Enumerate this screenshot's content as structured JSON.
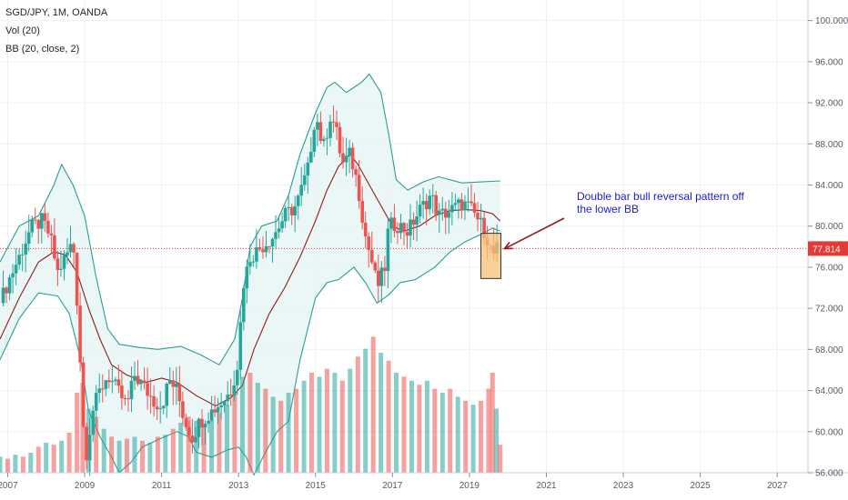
{
  "header": {
    "symbol": "SGD/JPY, 1M, OANDA",
    "volume_indicator": "Vol (20)",
    "bb_indicator": "BB (20, close, 2)"
  },
  "colors": {
    "up_candle": "#26a69a",
    "down_candle": "#ef5350",
    "bb_band": "#2a9d8f",
    "bb_basis": "#8e1c1c",
    "bb_fill": "#e3f4f3",
    "last_price": "#e53935",
    "highlight_fill": "#f6c177",
    "highlight_border": "#333333",
    "annotation_text": "#1d1dcc",
    "arrow": "#8e1c1c"
  },
  "chart_data": {
    "type": "candlestick",
    "title": "SGD/JPY, 1M, OANDA",
    "xlabel": "",
    "ylabel": "",
    "x_range": [
      2006.8,
      2027.8
    ],
    "ylim": [
      56.0,
      102.0
    ],
    "y_ticks": [
      "100.000",
      "96.000",
      "92.000",
      "88.000",
      "84.000",
      "80.000",
      "76.000",
      "72.000",
      "68.000",
      "64.000",
      "60.000",
      "56.000"
    ],
    "y_tick_values": [
      100,
      96,
      92,
      88,
      84,
      80,
      76,
      72,
      68,
      64,
      60,
      56
    ],
    "x_ticks": [
      "2007",
      "2009",
      "2011",
      "2013",
      "2015",
      "2017",
      "2019",
      "2021",
      "2023",
      "2025",
      "2027"
    ],
    "x_tick_values": [
      2007,
      2009,
      2011,
      2013,
      2015,
      2017,
      2019,
      2021,
      2023,
      2025,
      2027
    ],
    "last_price": "77.814",
    "last_price_value": 77.814,
    "grid": true,
    "volume_series": "Vol (20)",
    "bollinger_bands": "BB (20, close, 2)",
    "price_path": [
      [
        2006.8,
        72.5
      ],
      [
        2007.0,
        74.5
      ],
      [
        2007.3,
        77
      ],
      [
        2007.6,
        79.8
      ],
      [
        2007.9,
        80.5
      ],
      [
        2008.1,
        79
      ],
      [
        2008.3,
        75.5
      ],
      [
        2008.5,
        77
      ],
      [
        2008.7,
        78.5
      ],
      [
        2008.85,
        70
      ],
      [
        2008.95,
        61
      ],
      [
        2009.05,
        58
      ],
      [
        2009.2,
        62
      ],
      [
        2009.4,
        64
      ],
      [
        2009.6,
        65.5
      ],
      [
        2009.85,
        64
      ],
      [
        2010.1,
        62.5
      ],
      [
        2010.3,
        65.5
      ],
      [
        2010.6,
        64
      ],
      [
        2010.8,
        63
      ],
      [
        2011.0,
        62.5
      ],
      [
        2011.2,
        65
      ],
      [
        2011.4,
        64
      ],
      [
        2011.6,
        61
      ],
      [
        2011.8,
        59.5
      ],
      [
        2012.0,
        61
      ],
      [
        2012.3,
        62
      ],
      [
        2012.6,
        63
      ],
      [
        2012.8,
        64
      ],
      [
        2013.0,
        67
      ],
      [
        2013.1,
        74
      ],
      [
        2013.3,
        77
      ],
      [
        2013.6,
        78
      ],
      [
        2013.9,
        79
      ],
      [
        2014.2,
        81
      ],
      [
        2014.5,
        82
      ],
      [
        2014.8,
        85.5
      ],
      [
        2015.0,
        91
      ],
      [
        2015.2,
        87.5
      ],
      [
        2015.4,
        91
      ],
      [
        2015.55,
        89
      ],
      [
        2015.7,
        86
      ],
      [
        2015.9,
        87
      ],
      [
        2016.1,
        84
      ],
      [
        2016.3,
        79
      ],
      [
        2016.5,
        76
      ],
      [
        2016.6,
        74
      ],
      [
        2016.8,
        76
      ],
      [
        2016.9,
        80
      ],
      [
        2017.1,
        80.2
      ],
      [
        2017.4,
        79.5
      ],
      [
        2017.7,
        81.5
      ],
      [
        2018.0,
        83
      ],
      [
        2018.2,
        81
      ],
      [
        2018.5,
        81.5
      ],
      [
        2018.8,
        82.2
      ],
      [
        2019.0,
        81.8
      ],
      [
        2019.2,
        80.8
      ],
      [
        2019.4,
        79.5
      ],
      [
        2019.5,
        78.5
      ],
      [
        2019.6,
        77
      ],
      [
        2019.7,
        77.8
      ],
      [
        2019.75,
        77.81
      ]
    ],
    "bb_upper": [
      [
        2006.8,
        76.5
      ],
      [
        2007.3,
        80
      ],
      [
        2007.8,
        81
      ],
      [
        2008.2,
        84
      ],
      [
        2008.4,
        86
      ],
      [
        2008.7,
        84
      ],
      [
        2009.0,
        81
      ],
      [
        2009.3,
        75
      ],
      [
        2009.6,
        70
      ],
      [
        2009.9,
        68.5
      ],
      [
        2010.4,
        68.2
      ],
      [
        2010.9,
        68
      ],
      [
        2011.5,
        68.3
      ],
      [
        2012.0,
        67.5
      ],
      [
        2012.5,
        66.5
      ],
      [
        2012.9,
        69
      ],
      [
        2013.1,
        73
      ],
      [
        2013.3,
        78
      ],
      [
        2013.6,
        80
      ],
      [
        2014.0,
        80.5
      ],
      [
        2014.3,
        83
      ],
      [
        2014.6,
        87
      ],
      [
        2015.0,
        91
      ],
      [
        2015.3,
        93.5
      ],
      [
        2015.5,
        94
      ],
      [
        2015.8,
        93
      ],
      [
        2016.2,
        94
      ],
      [
        2016.4,
        94.8
      ],
      [
        2016.7,
        93
      ],
      [
        2016.9,
        89
      ],
      [
        2017.1,
        84.5
      ],
      [
        2017.4,
        83.5
      ],
      [
        2017.8,
        84.3
      ],
      [
        2018.2,
        84.8
      ],
      [
        2018.8,
        84.2
      ],
      [
        2019.3,
        84.3
      ],
      [
        2019.8,
        84.4
      ]
    ],
    "bb_lower": [
      [
        2006.8,
        67
      ],
      [
        2007.3,
        71
      ],
      [
        2007.8,
        73.5
      ],
      [
        2008.3,
        73.2
      ],
      [
        2008.6,
        71.5
      ],
      [
        2008.9,
        67
      ],
      [
        2009.1,
        62
      ],
      [
        2009.4,
        59.5
      ],
      [
        2009.7,
        57.5
      ],
      [
        2009.9,
        56
      ],
      [
        2010.2,
        57
      ],
      [
        2010.5,
        58.5
      ],
      [
        2010.9,
        59.2
      ],
      [
        2011.4,
        60
      ],
      [
        2011.7,
        59.5
      ],
      [
        2011.9,
        58
      ],
      [
        2012.3,
        57.5
      ],
      [
        2012.7,
        58.2
      ],
      [
        2013.0,
        58.5
      ],
      [
        2013.2,
        57.5
      ],
      [
        2013.4,
        55.8
      ],
      [
        2013.7,
        58
      ],
      [
        2014.0,
        60
      ],
      [
        2014.3,
        61
      ],
      [
        2014.6,
        67
      ],
      [
        2015.0,
        73
      ],
      [
        2015.3,
        74.5
      ],
      [
        2015.6,
        74.8
      ],
      [
        2016.0,
        76
      ],
      [
        2016.3,
        74.5
      ],
      [
        2016.6,
        72.5
      ],
      [
        2016.9,
        73.3
      ],
      [
        2017.2,
        74.5
      ],
      [
        2017.6,
        74.8
      ],
      [
        2018.1,
        76
      ],
      [
        2018.5,
        77.5
      ],
      [
        2018.9,
        78.5
      ],
      [
        2019.3,
        79.2
      ],
      [
        2019.6,
        79.8
      ],
      [
        2019.8,
        79.5
      ]
    ],
    "bb_basis": [
      [
        2006.8,
        69
      ],
      [
        2007.3,
        73
      ],
      [
        2007.8,
        76.5
      ],
      [
        2008.2,
        77.5
      ],
      [
        2008.5,
        77.2
      ],
      [
        2008.8,
        75.5
      ],
      [
        2009.1,
        72
      ],
      [
        2009.4,
        69
      ],
      [
        2009.7,
        66.5
      ],
      [
        2010.1,
        65.5
      ],
      [
        2010.6,
        64.8
      ],
      [
        2011.0,
        65.2
      ],
      [
        2011.4,
        64.8
      ],
      [
        2011.9,
        63.5
      ],
      [
        2012.4,
        62.5
      ],
      [
        2012.8,
        63.3
      ],
      [
        2013.1,
        64.5
      ],
      [
        2013.4,
        68
      ],
      [
        2013.8,
        71.5
      ],
      [
        2014.2,
        74
      ],
      [
        2014.6,
        77
      ],
      [
        2015.0,
        80.5
      ],
      [
        2015.3,
        83.5
      ],
      [
        2015.6,
        85.8
      ],
      [
        2015.9,
        87
      ],
      [
        2016.1,
        86
      ],
      [
        2016.4,
        84
      ],
      [
        2016.7,
        82
      ],
      [
        2017.0,
        80
      ],
      [
        2017.3,
        79.5
      ],
      [
        2017.7,
        80
      ],
      [
        2018.1,
        81
      ],
      [
        2018.5,
        81.5
      ],
      [
        2018.9,
        81.6
      ],
      [
        2019.3,
        81.5
      ],
      [
        2019.6,
        81.2
      ],
      [
        2019.8,
        80.5
      ]
    ],
    "volume_bars": [
      [
        2006.8,
        0.8,
        "u"
      ],
      [
        2007.0,
        0.7,
        "d"
      ],
      [
        2007.2,
        0.9,
        "u"
      ],
      [
        2007.4,
        0.8,
        "d"
      ],
      [
        2007.6,
        1.0,
        "u"
      ],
      [
        2007.8,
        1.3,
        "d"
      ],
      [
        2008.0,
        1.5,
        "u"
      ],
      [
        2008.2,
        1.4,
        "d"
      ],
      [
        2008.4,
        1.6,
        "u"
      ],
      [
        2008.6,
        2.0,
        "d"
      ],
      [
        2008.8,
        4.0,
        "d"
      ],
      [
        2008.95,
        4.5,
        "d"
      ],
      [
        2009.1,
        3.2,
        "u"
      ],
      [
        2009.3,
        2.8,
        "d"
      ],
      [
        2009.5,
        2.2,
        "u"
      ],
      [
        2009.7,
        1.8,
        "d"
      ],
      [
        2009.9,
        1.6,
        "u"
      ],
      [
        2010.1,
        1.7,
        "d"
      ],
      [
        2010.3,
        1.8,
        "u"
      ],
      [
        2010.5,
        1.6,
        "d"
      ],
      [
        2010.7,
        1.5,
        "u"
      ],
      [
        2010.9,
        1.8,
        "d"
      ],
      [
        2011.1,
        1.9,
        "u"
      ],
      [
        2011.3,
        2.2,
        "d"
      ],
      [
        2011.5,
        2.5,
        "u"
      ],
      [
        2011.7,
        2.8,
        "d"
      ],
      [
        2011.9,
        2.6,
        "u"
      ],
      [
        2012.1,
        2.4,
        "d"
      ],
      [
        2012.3,
        2.6,
        "u"
      ],
      [
        2012.5,
        3.0,
        "d"
      ],
      [
        2012.7,
        3.4,
        "u"
      ],
      [
        2012.9,
        4.0,
        "d"
      ],
      [
        2013.1,
        4.8,
        "u"
      ],
      [
        2013.3,
        5.0,
        "d"
      ],
      [
        2013.5,
        4.5,
        "u"
      ],
      [
        2013.7,
        4.2,
        "d"
      ],
      [
        2013.9,
        3.8,
        "u"
      ],
      [
        2014.1,
        3.6,
        "d"
      ],
      [
        2014.3,
        4.0,
        "u"
      ],
      [
        2014.5,
        4.2,
        "d"
      ],
      [
        2014.7,
        4.6,
        "u"
      ],
      [
        2014.9,
        5.0,
        "d"
      ],
      [
        2015.1,
        4.8,
        "u"
      ],
      [
        2015.3,
        5.2,
        "d"
      ],
      [
        2015.5,
        5.0,
        "u"
      ],
      [
        2015.7,
        4.6,
        "d"
      ],
      [
        2015.9,
        5.2,
        "u"
      ],
      [
        2016.1,
        5.8,
        "d"
      ],
      [
        2016.3,
        6.2,
        "u"
      ],
      [
        2016.5,
        6.8,
        "d"
      ],
      [
        2016.7,
        6.0,
        "u"
      ],
      [
        2016.9,
        5.6,
        "d"
      ],
      [
        2017.1,
        5.0,
        "u"
      ],
      [
        2017.3,
        4.8,
        "d"
      ],
      [
        2017.5,
        4.6,
        "u"
      ],
      [
        2017.7,
        4.4,
        "d"
      ],
      [
        2017.9,
        4.6,
        "u"
      ],
      [
        2018.1,
        4.2,
        "d"
      ],
      [
        2018.3,
        4.0,
        "u"
      ],
      [
        2018.5,
        4.2,
        "d"
      ],
      [
        2018.7,
        3.8,
        "u"
      ],
      [
        2018.9,
        3.6,
        "d"
      ],
      [
        2019.1,
        3.4,
        "u"
      ],
      [
        2019.3,
        3.6,
        "d"
      ],
      [
        2019.5,
        4.2,
        "d"
      ],
      [
        2019.6,
        5.0,
        "d"
      ],
      [
        2019.7,
        3.2,
        "u"
      ],
      [
        2019.8,
        1.4,
        "d"
      ]
    ]
  },
  "annotation": {
    "line1": "Double bar bull reversal pattern off",
    "line2": "the lower BB"
  }
}
